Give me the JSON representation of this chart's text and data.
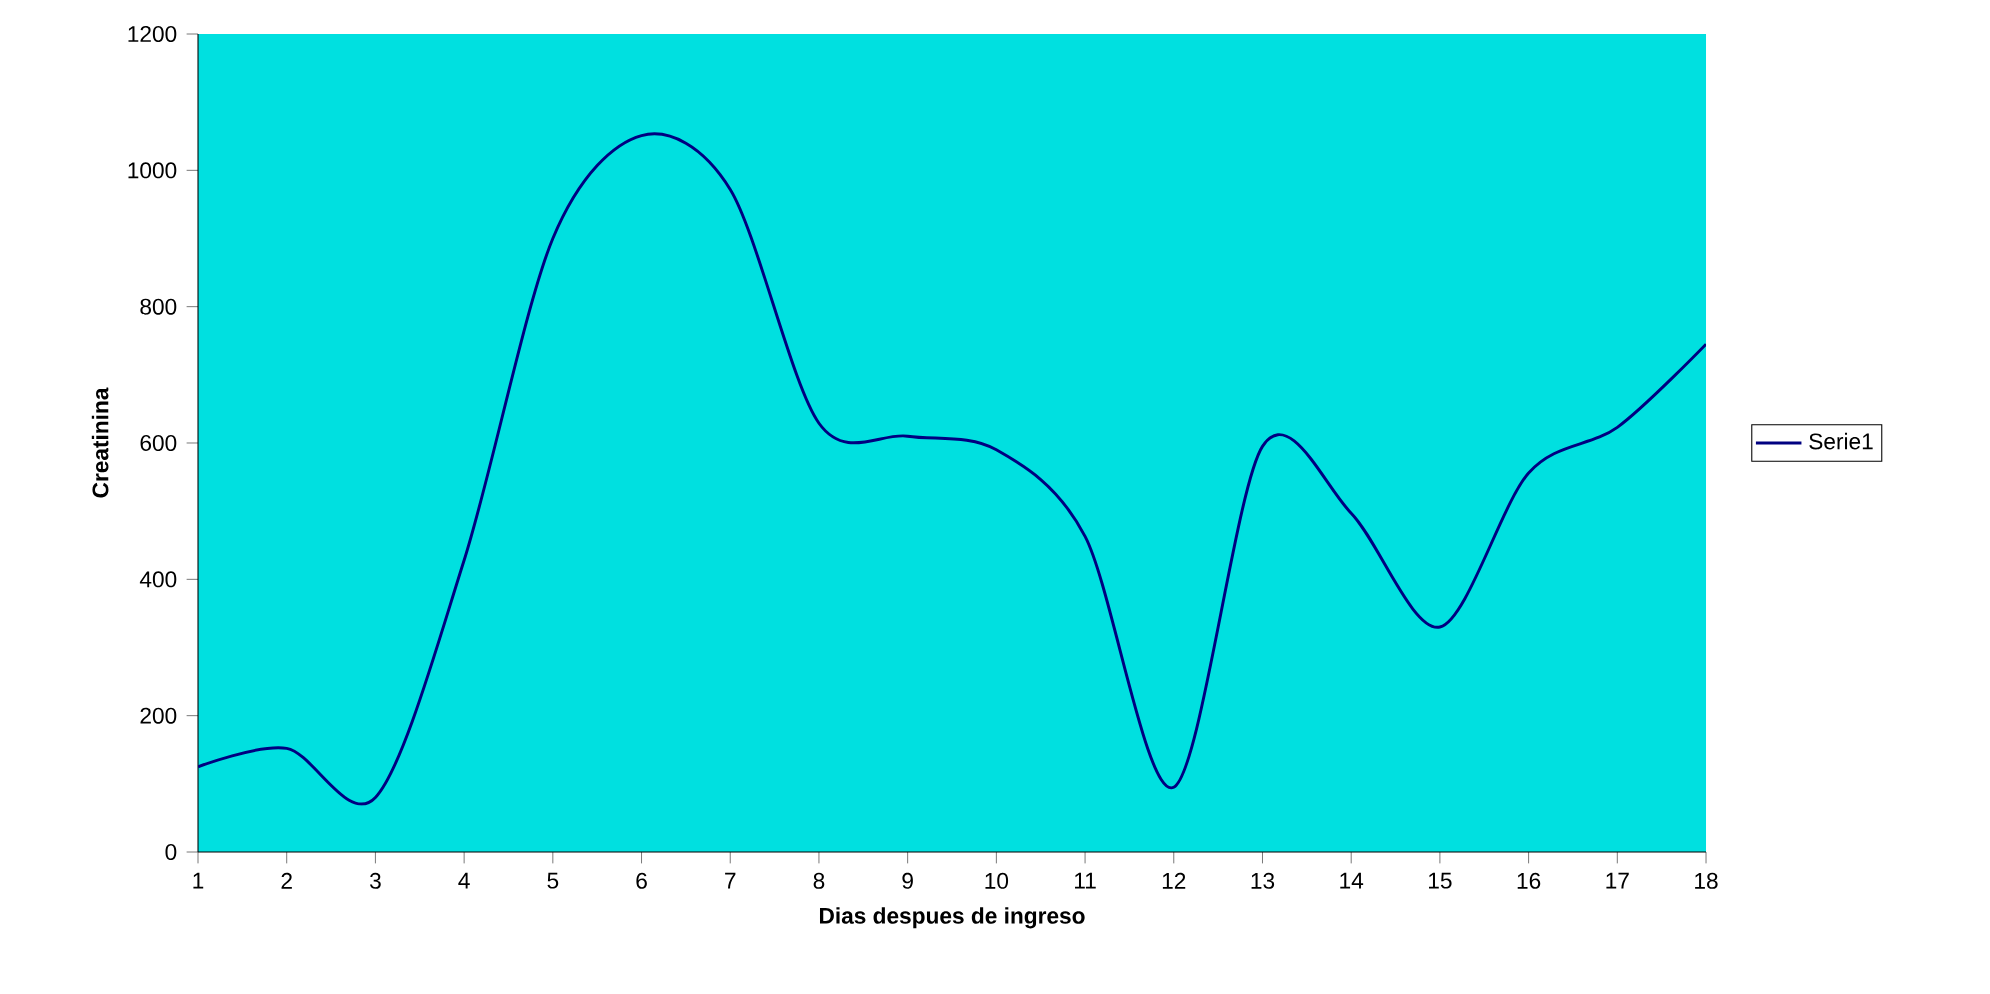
{
  "chart_data": {
    "type": "line",
    "xlabel": "Dias despues de ingreso",
    "ylabel": "Creatinina",
    "categories": [
      "1",
      "2",
      "3",
      "4",
      "5",
      "6",
      "7",
      "8",
      "9",
      "10",
      "11",
      "12",
      "13",
      "14",
      "15",
      "16",
      "17",
      "18"
    ],
    "series": [
      {
        "name": "Serie1",
        "color": "#000080",
        "values": [
          125,
          152,
          80,
          428,
          900,
          1051,
          972,
          629,
          610,
          590,
          463,
          95,
          595,
          497,
          330,
          556,
          623,
          745
        ]
      }
    ],
    "ylim": [
      0,
      1200
    ],
    "yticks": [
      0,
      200,
      400,
      600,
      800,
      1000,
      1200
    ],
    "grid": false,
    "legend": "right",
    "marker": "none",
    "line_style": "solid"
  }
}
